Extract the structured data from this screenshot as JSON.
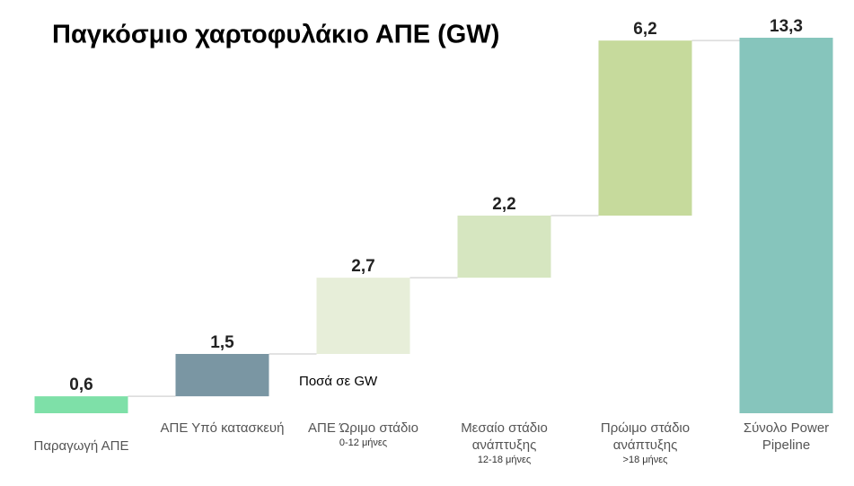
{
  "chart_data": {
    "type": "waterfall",
    "title": "Παγκόσμιο χαρτοφυλάκιο ΑΠΕ (GW)",
    "annotation": "Ποσά σε GW",
    "categories": [
      "Παραγωγή ΑΠΕ",
      "ΑΠΕ Υπό κατασκευή",
      "ΑΠΕ Ώριμο στάδιο",
      "Μεσαίο στάδιο ανάπτυξης",
      "Πρώιμο στάδιο ανάπτυξης",
      "Σύνολο Power Pipeline"
    ],
    "category_subtitles": [
      null,
      null,
      "0-12 μήνες",
      "12-18 μήνες",
      ">18 μήνες",
      null
    ],
    "values": [
      0.6,
      1.5,
      2.7,
      2.2,
      6.2,
      13.3
    ],
    "value_labels": [
      "0,6",
      "1,5",
      "2,7",
      "2,2",
      "6,2",
      "13,3"
    ],
    "total": [
      false,
      false,
      false,
      false,
      false,
      true
    ],
    "colors": [
      "#7ee0a8",
      "#7a96a3",
      "#e7eed9",
      "#d6e6c0",
      "#c6da9c",
      "#86c5bc"
    ]
  }
}
